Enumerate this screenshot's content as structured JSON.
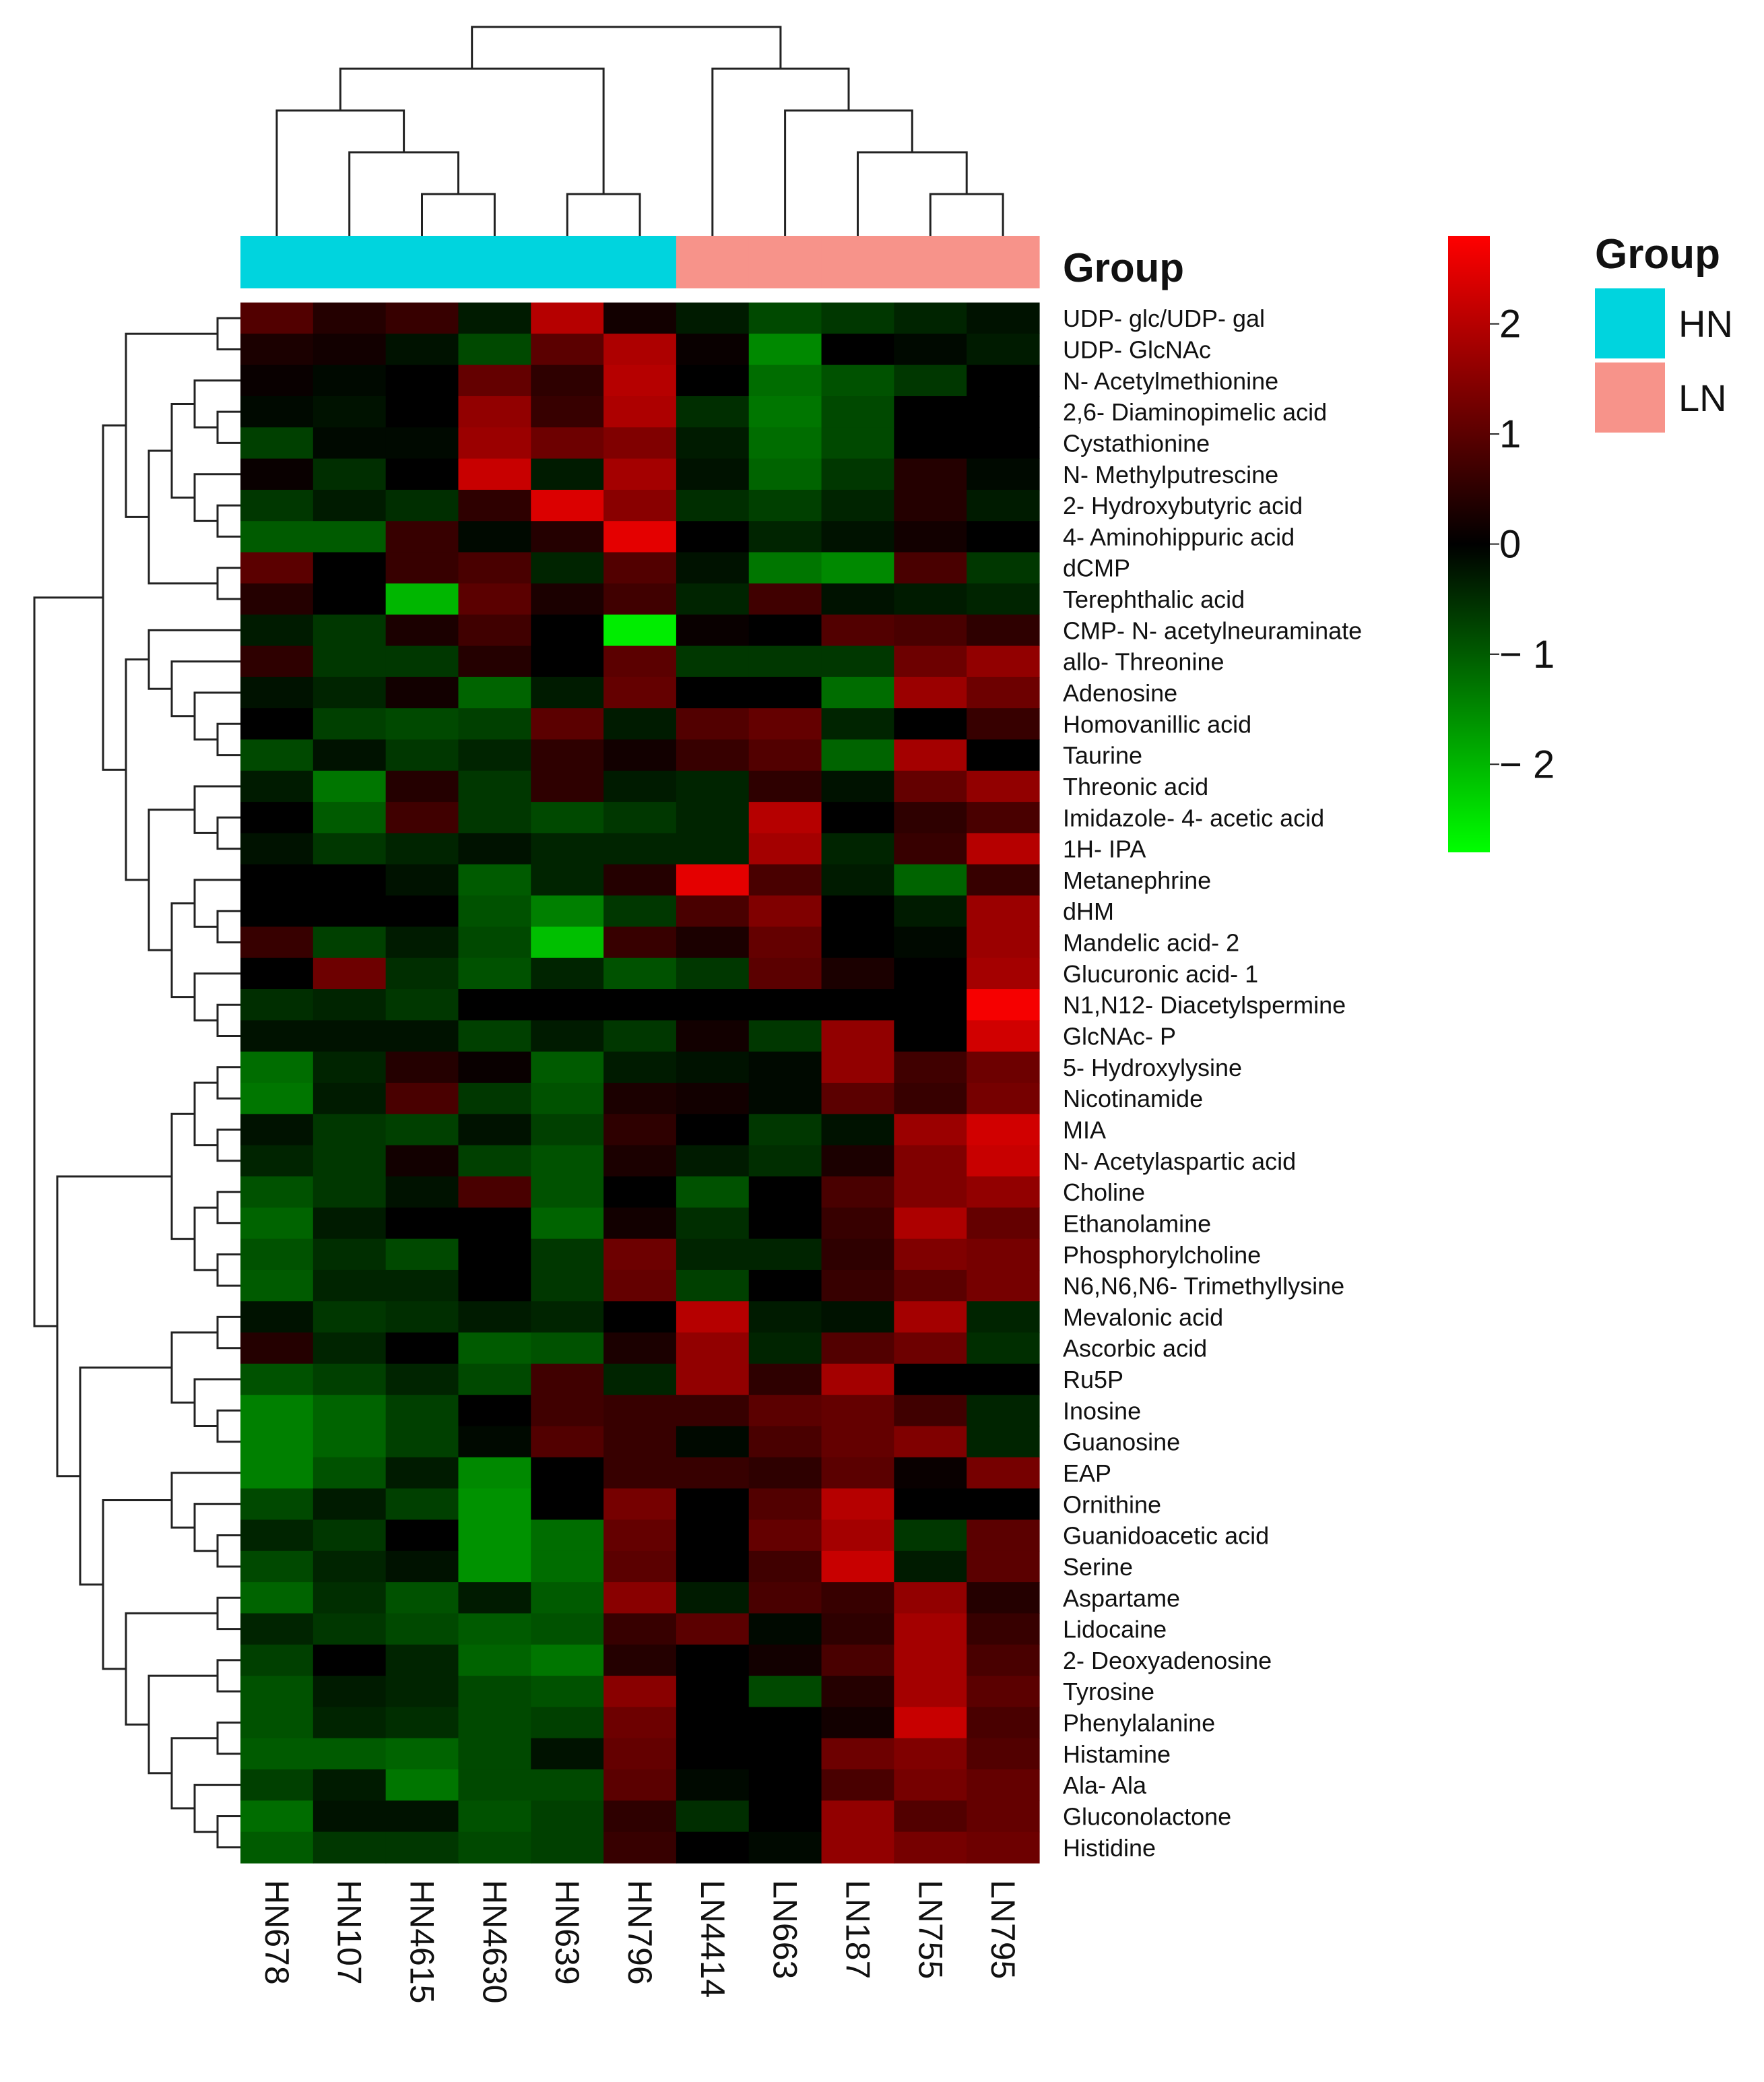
{
  "chart_data": {
    "type": "heatmap",
    "title": "",
    "columns": [
      "HN678",
      "HN107",
      "HN4615",
      "HN4630",
      "HN639",
      "HN796",
      "LN4414",
      "LN663",
      "LN187",
      "LN755",
      "LN795"
    ],
    "column_groups": [
      "HN",
      "HN",
      "HN",
      "HN",
      "HN",
      "HN",
      "LN",
      "LN",
      "LN",
      "LN",
      "LN"
    ],
    "annotation_title": "Group",
    "legend": {
      "title": "Group",
      "entries": [
        {
          "label": "HN",
          "color": "#00D4DE"
        },
        {
          "label": "LN",
          "color": "#F7938A"
        }
      ]
    },
    "color_scale": {
      "min": -2.8,
      "max": 2.8,
      "low_color": "#00FF00",
      "mid_color": "#000000",
      "high_color": "#FF0000",
      "ticks": [
        2,
        1,
        0,
        -1,
        -2
      ],
      "tick_labels": [
        "2",
        "1",
        "0",
        "− 1",
        "− 2"
      ]
    },
    "rows": [
      {
        "label": "UDP- glc/UDP- gal",
        "values": [
          0.9,
          0.4,
          0.6,
          -0.3,
          2.0,
          0.2,
          -0.3,
          -0.8,
          -0.6,
          -0.4,
          -0.2
        ]
      },
      {
        "label": "UDP- GlcNAc",
        "values": [
          0.3,
          0.2,
          -0.2,
          -0.8,
          1.0,
          1.9,
          0.1,
          -1.5,
          0.0,
          -0.1,
          -0.3
        ]
      },
      {
        "label": "N- Acetylmethionine",
        "values": [
          0.1,
          -0.1,
          0.0,
          1.1,
          0.5,
          2.0,
          0.0,
          -1.2,
          -0.9,
          -0.6,
          0.0
        ]
      },
      {
        "label": "2,6- Diaminopimelic acid",
        "values": [
          -0.1,
          -0.2,
          0.0,
          1.6,
          0.6,
          1.9,
          -0.5,
          -1.3,
          -0.8,
          0.0,
          0.0
        ]
      },
      {
        "label": "Cystathionine",
        "values": [
          -0.7,
          -0.1,
          -0.1,
          1.7,
          1.2,
          1.4,
          -0.3,
          -1.2,
          -0.8,
          0.0,
          0.0
        ]
      },
      {
        "label": "N- Methylputrescine",
        "values": [
          0.1,
          -0.5,
          0.0,
          2.2,
          -0.3,
          1.8,
          -0.2,
          -1.1,
          -0.6,
          0.4,
          -0.1
        ]
      },
      {
        "label": "2- Hydroxybutyric acid",
        "values": [
          -0.6,
          -0.3,
          -0.5,
          0.5,
          2.4,
          1.5,
          -0.5,
          -0.7,
          -0.4,
          0.4,
          -0.3
        ]
      },
      {
        "label": "4- Aminohippuric acid",
        "values": [
          -1.0,
          -1.0,
          0.6,
          -0.1,
          0.4,
          2.5,
          0.0,
          -0.4,
          -0.2,
          0.2,
          0.0
        ]
      },
      {
        "label": "dCMP",
        "values": [
          1.0,
          0.0,
          0.6,
          0.8,
          -0.4,
          0.9,
          -0.2,
          -1.3,
          -1.5,
          0.8,
          -0.6
        ]
      },
      {
        "label": "Terephthalic acid",
        "values": [
          0.4,
          0.0,
          -2.0,
          1.0,
          0.3,
          0.7,
          -0.4,
          0.7,
          -0.2,
          -0.3,
          -0.4
        ]
      },
      {
        "label": "CMP- N- acetylneuraminate",
        "values": [
          -0.3,
          -0.6,
          0.3,
          0.7,
          0.0,
          -2.6,
          0.1,
          0.0,
          0.9,
          0.8,
          0.5
        ]
      },
      {
        "label": "allo- Threonine",
        "values": [
          0.5,
          -0.6,
          -0.6,
          0.4,
          0.0,
          1.0,
          -0.6,
          -0.6,
          -0.6,
          1.2,
          1.6
        ]
      },
      {
        "label": "Adenosine",
        "values": [
          -0.2,
          -0.4,
          0.2,
          -1.1,
          -0.3,
          1.1,
          0.0,
          0.0,
          -1.2,
          1.7,
          1.2
        ]
      },
      {
        "label": "Homovanillic acid",
        "values": [
          0.0,
          -0.7,
          -0.8,
          -0.7,
          1.0,
          -0.3,
          0.9,
          1.1,
          -0.4,
          0.0,
          0.6
        ]
      },
      {
        "label": "Taurine",
        "values": [
          -0.8,
          -0.2,
          -0.6,
          -0.4,
          0.5,
          0.2,
          0.6,
          0.9,
          -1.1,
          1.8,
          0.0
        ]
      },
      {
        "label": "Threonic acid",
        "values": [
          -0.3,
          -1.3,
          0.4,
          -0.6,
          0.5,
          -0.3,
          -0.4,
          0.5,
          -0.2,
          1.1,
          1.6
        ]
      },
      {
        "label": "Imidazole- 4- acetic acid",
        "values": [
          0.0,
          -1.0,
          0.7,
          -0.6,
          -0.8,
          -0.6,
          -0.4,
          2.0,
          0.0,
          0.5,
          0.8
        ]
      },
      {
        "label": "1H- IPA",
        "values": [
          -0.2,
          -0.6,
          -0.4,
          -0.2,
          -0.4,
          -0.4,
          -0.4,
          1.8,
          -0.4,
          0.6,
          2.0
        ]
      },
      {
        "label": "Metanephrine",
        "values": [
          0.0,
          0.0,
          -0.2,
          -1.0,
          -0.4,
          0.4,
          2.5,
          0.8,
          -0.3,
          -1.1,
          0.6
        ]
      },
      {
        "label": "dHM",
        "values": [
          0.0,
          0.0,
          0.0,
          -0.9,
          -1.4,
          -0.6,
          0.8,
          1.4,
          0.0,
          -0.3,
          1.7
        ]
      },
      {
        "label": "Mandelic acid- 2",
        "values": [
          0.6,
          -0.7,
          -0.3,
          -0.8,
          -2.1,
          0.6,
          0.3,
          1.1,
          0.0,
          -0.1,
          1.7
        ]
      },
      {
        "label": "Glucuronic acid- 1",
        "values": [
          0.0,
          1.2,
          -0.5,
          -0.9,
          -0.4,
          -0.9,
          -0.6,
          1.0,
          0.3,
          0.0,
          1.8
        ]
      },
      {
        "label": "N1,N12- Diacetylspermine",
        "values": [
          -0.5,
          -0.4,
          -0.6,
          0.0,
          0.0,
          0.0,
          0.0,
          0.0,
          0.0,
          0.0,
          2.7
        ]
      },
      {
        "label": "GlcNAc- P",
        "values": [
          -0.2,
          -0.2,
          -0.2,
          -0.7,
          -0.3,
          -0.6,
          0.2,
          -0.6,
          1.6,
          0.0,
          2.3
        ]
      },
      {
        "label": "5- Hydroxylysine",
        "values": [
          -1.2,
          -0.4,
          0.4,
          0.1,
          -1.0,
          -0.3,
          -0.2,
          -0.1,
          1.6,
          0.7,
          1.2
        ]
      },
      {
        "label": "Nicotinamide",
        "values": [
          -1.3,
          -0.3,
          0.8,
          -0.6,
          -0.9,
          0.3,
          0.2,
          -0.1,
          1.0,
          0.6,
          1.3
        ]
      },
      {
        "label": "MIA",
        "values": [
          -0.2,
          -0.6,
          -0.7,
          -0.2,
          -0.7,
          0.5,
          0.0,
          -0.6,
          -0.2,
          1.7,
          2.3
        ]
      },
      {
        "label": "N- Acetylaspartic acid",
        "values": [
          -0.4,
          -0.6,
          0.2,
          -0.7,
          -0.9,
          0.3,
          -0.3,
          -0.5,
          0.3,
          1.4,
          2.2
        ]
      },
      {
        "label": "Choline",
        "values": [
          -0.9,
          -0.6,
          -0.2,
          0.8,
          -0.9,
          0.0,
          -0.9,
          0.0,
          0.8,
          1.4,
          1.6
        ]
      },
      {
        "label": "Ethanolamine",
        "values": [
          -1.1,
          -0.3,
          0.0,
          0.0,
          -1.1,
          0.2,
          -0.5,
          0.0,
          0.6,
          1.9,
          1.1
        ]
      },
      {
        "label": "Phosphorylcholine",
        "values": [
          -0.9,
          -0.5,
          -0.8,
          0.0,
          -0.6,
          1.2,
          -0.4,
          -0.4,
          0.5,
          1.4,
          1.3
        ]
      },
      {
        "label": "N6,N6,N6- Trimethyllysine",
        "values": [
          -1.0,
          -0.4,
          -0.4,
          0.0,
          -0.6,
          1.1,
          -0.7,
          0.0,
          0.6,
          1.0,
          1.3
        ]
      },
      {
        "label": "Mevalonic acid",
        "values": [
          -0.2,
          -0.6,
          -0.5,
          -0.3,
          -0.4,
          0.0,
          2.0,
          -0.3,
          -0.2,
          1.8,
          -0.4
        ]
      },
      {
        "label": "Ascorbic acid",
        "values": [
          0.4,
          -0.4,
          0.0,
          -1.0,
          -0.9,
          0.3,
          1.6,
          -0.4,
          0.9,
          1.2,
          -0.5
        ]
      },
      {
        "label": "Ru5P",
        "values": [
          -0.9,
          -0.7,
          -0.4,
          -0.8,
          0.7,
          -0.4,
          1.6,
          0.5,
          1.8,
          0.0,
          0.0
        ]
      },
      {
        "label": "Inosine",
        "values": [
          -1.4,
          -1.1,
          -0.7,
          0.0,
          0.7,
          0.6,
          0.6,
          1.0,
          1.1,
          0.7,
          -0.4
        ]
      },
      {
        "label": "Guanosine",
        "values": [
          -1.4,
          -1.1,
          -0.7,
          -0.1,
          0.9,
          0.6,
          -0.1,
          0.8,
          1.1,
          1.4,
          -0.4
        ]
      },
      {
        "label": "EAP",
        "values": [
          -1.4,
          -0.9,
          -0.3,
          -1.5,
          0.0,
          0.6,
          0.6,
          0.5,
          1.0,
          0.1,
          1.3
        ]
      },
      {
        "label": "Ornithine",
        "values": [
          -0.8,
          -0.3,
          -0.7,
          -1.6,
          0.0,
          1.3,
          0.0,
          0.9,
          2.0,
          0.0,
          0.0
        ]
      },
      {
        "label": "Guanidoacetic acid",
        "values": [
          -0.4,
          -0.6,
          0.0,
          -1.6,
          -1.2,
          1.1,
          0.0,
          1.1,
          1.8,
          -0.6,
          1.0
        ]
      },
      {
        "label": "Serine",
        "values": [
          -0.8,
          -0.4,
          -0.2,
          -1.6,
          -1.2,
          1.0,
          0.0,
          0.7,
          2.2,
          -0.3,
          1.0
        ]
      },
      {
        "label": "Aspartame",
        "values": [
          -1.1,
          -0.5,
          -0.9,
          -0.3,
          -1.0,
          1.5,
          -0.3,
          0.8,
          0.6,
          1.6,
          0.4
        ]
      },
      {
        "label": "Lidocaine",
        "values": [
          -0.4,
          -0.6,
          -0.8,
          -1.0,
          -0.9,
          0.6,
          1.0,
          -0.1,
          0.5,
          1.8,
          0.6
        ]
      },
      {
        "label": "2- Deoxyadenosine",
        "values": [
          -0.7,
          0.0,
          -0.4,
          -1.1,
          -1.3,
          0.4,
          0.0,
          0.2,
          0.8,
          1.8,
          0.8
        ]
      },
      {
        "label": "Tyrosine",
        "values": [
          -0.9,
          -0.3,
          -0.4,
          -0.8,
          -0.9,
          1.5,
          0.0,
          -0.8,
          0.4,
          1.8,
          1.0
        ]
      },
      {
        "label": "Phenylalanine",
        "values": [
          -0.9,
          -0.4,
          -0.5,
          -0.8,
          -0.7,
          1.2,
          0.0,
          0.0,
          0.2,
          2.2,
          0.8
        ]
      },
      {
        "label": "Histamine",
        "values": [
          -1.0,
          -1.0,
          -1.1,
          -0.8,
          -0.2,
          1.1,
          0.0,
          0.0,
          1.2,
          1.4,
          0.9
        ]
      },
      {
        "label": "Ala- Ala",
        "values": [
          -0.7,
          -0.3,
          -1.3,
          -0.8,
          -0.8,
          1.0,
          -0.1,
          0.0,
          0.8,
          1.3,
          1.1
        ]
      },
      {
        "label": "Gluconolactone",
        "values": [
          -1.2,
          -0.2,
          -0.2,
          -0.9,
          -0.7,
          0.5,
          -0.5,
          0.0,
          1.6,
          0.9,
          1.1
        ]
      },
      {
        "label": "Histidine",
        "values": [
          -1.0,
          -0.6,
          -0.6,
          -0.8,
          -0.7,
          0.6,
          0.0,
          -0.1,
          1.6,
          1.3,
          1.2
        ]
      }
    ]
  }
}
